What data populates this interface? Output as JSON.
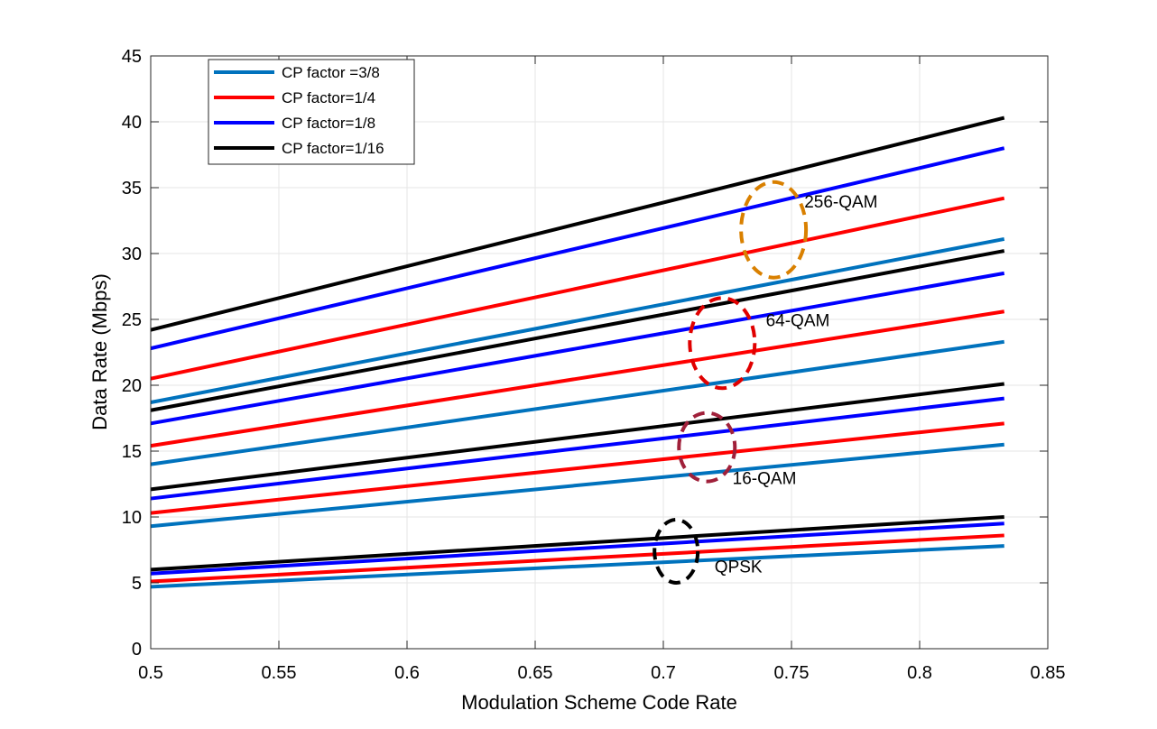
{
  "chart_data": {
    "type": "line",
    "title": "",
    "xlabel": "Modulation Scheme Code Rate",
    "ylabel": "Data Rate (Mbps)",
    "xlim": [
      0.5,
      0.85
    ],
    "ylim": [
      0,
      45
    ],
    "xticks": [
      "0.5",
      "0.55",
      "0.6",
      "0.65",
      "0.7",
      "0.75",
      "0.8",
      "0.85"
    ],
    "yticks": [
      "0",
      "5",
      "10",
      "15",
      "20",
      "25",
      "30",
      "35",
      "40",
      "45"
    ],
    "grid": true,
    "legend_position": "top-left",
    "legend": [
      {
        "label": "CP factor =3/8",
        "color": "#0072BD"
      },
      {
        "label": "CP factor=1/4",
        "color": "#FF0000"
      },
      {
        "label": "CP factor=1/8",
        "color": "#0000FF"
      },
      {
        "label": "CP factor=1/16",
        "color": "#000000"
      }
    ],
    "x": [
      0.5,
      0.833
    ],
    "series": [
      {
        "group": "QPSK",
        "cp": "3/8",
        "color": "#0072BD",
        "y": [
          4.7,
          7.8
        ]
      },
      {
        "group": "QPSK",
        "cp": "1/4",
        "color": "#FF0000",
        "y": [
          5.1,
          8.6
        ]
      },
      {
        "group": "QPSK",
        "cp": "1/8",
        "color": "#0000FF",
        "y": [
          5.7,
          9.5
        ]
      },
      {
        "group": "QPSK",
        "cp": "1/16",
        "color": "#000000",
        "y": [
          6.0,
          10.0
        ]
      },
      {
        "group": "16-QAM",
        "cp": "3/8",
        "color": "#0072BD",
        "y": [
          9.3,
          15.5
        ]
      },
      {
        "group": "16-QAM",
        "cp": "1/4",
        "color": "#FF0000",
        "y": [
          10.3,
          17.1
        ]
      },
      {
        "group": "16-QAM",
        "cp": "1/8",
        "color": "#0000FF",
        "y": [
          11.4,
          19.0
        ]
      },
      {
        "group": "16-QAM",
        "cp": "1/16",
        "color": "#000000",
        "y": [
          12.1,
          20.1
        ]
      },
      {
        "group": "64-QAM",
        "cp": "3/8",
        "color": "#0072BD",
        "y": [
          14.0,
          23.3
        ]
      },
      {
        "group": "64-QAM",
        "cp": "1/4",
        "color": "#FF0000",
        "y": [
          15.4,
          25.6
        ]
      },
      {
        "group": "64-QAM",
        "cp": "1/8",
        "color": "#0000FF",
        "y": [
          17.1,
          28.5
        ]
      },
      {
        "group": "64-QAM",
        "cp": "1/16",
        "color": "#000000",
        "y": [
          18.1,
          30.2
        ]
      },
      {
        "group": "256-QAM",
        "cp": "3/8",
        "color": "#0072BD",
        "y": [
          18.7,
          31.1
        ]
      },
      {
        "group": "256-QAM",
        "cp": "1/4",
        "color": "#FF0000",
        "y": [
          20.5,
          34.2
        ]
      },
      {
        "group": "256-QAM",
        "cp": "1/8",
        "color": "#0000FF",
        "y": [
          22.8,
          38.0
        ]
      },
      {
        "group": "256-QAM",
        "cp": "1/16",
        "color": "#000000",
        "y": [
          24.2,
          40.3
        ]
      }
    ],
    "annotations": [
      {
        "text": "256-QAM",
        "color": "#D98000",
        "ellipse_center": [
          0.743,
          31.8
        ],
        "label_at": [
          0.755,
          33.5
        ]
      },
      {
        "text": "64-QAM",
        "color": "#E00000",
        "ellipse_center": [
          0.723,
          23.2
        ],
        "label_at": [
          0.74,
          24.5
        ]
      },
      {
        "text": "16-QAM",
        "color": "#A0203A",
        "ellipse_center": [
          0.717,
          15.3
        ],
        "label_at": [
          0.727,
          12.5
        ]
      },
      {
        "text": "QPSK",
        "color": "#000000",
        "ellipse_center": [
          0.705,
          7.4
        ],
        "label_at": [
          0.72,
          5.8
        ]
      }
    ]
  }
}
